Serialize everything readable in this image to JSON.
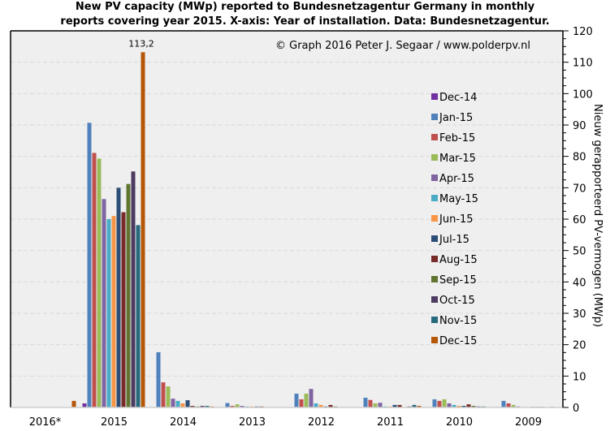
{
  "chart_data": {
    "type": "bar",
    "title_line1": "New PV capacity (MWp) reported to Bundesnetzagentur Germany in monthly",
    "title_line2": "reports covering year 2015. X-axis: Year of installation. Data: Bundesnetzagentur.",
    "credit": "© Graph 2016 Peter J. Segaar / www.polderpv.nl",
    "xlabel": "",
    "ylabel": "Nieuw gerapporteerd PV-vermogen (MWp)",
    "ylim": [
      0,
      120
    ],
    "yticks": [
      "0",
      "10",
      "20",
      "30",
      "40",
      "50",
      "60",
      "70",
      "80",
      "90",
      "100",
      "110",
      "120"
    ],
    "grid": true,
    "legend_position": "right",
    "categories": [
      "2016*",
      "2015",
      "2014",
      "2013",
      "2012",
      "2011",
      "2010",
      "2009"
    ],
    "series": [
      {
        "name": "Dec-14",
        "color": "#7030a0",
        "values": [
          0,
          1.3,
          0,
          0,
          0,
          0,
          0,
          0
        ]
      },
      {
        "name": "Jan-15",
        "color": "#4f81bd",
        "values": [
          0,
          90.7,
          17.6,
          1.4,
          4.4,
          3.1,
          2.6,
          2.1
        ]
      },
      {
        "name": "Feb-15",
        "color": "#c0504d",
        "values": [
          0,
          81.1,
          8.0,
          0.5,
          2.6,
          2.4,
          2.1,
          1.3
        ]
      },
      {
        "name": "Mar-15",
        "color": "#9bbb59",
        "values": [
          0,
          79.3,
          6.7,
          1.0,
          4.4,
          1.3,
          2.6,
          0.8
        ]
      },
      {
        "name": "Apr-15",
        "color": "#8064a2",
        "values": [
          0,
          66.4,
          2.8,
          0.5,
          5.9,
          1.5,
          1.3,
          0.3
        ]
      },
      {
        "name": "May-15",
        "color": "#4bacc6",
        "values": [
          0,
          60.0,
          2.1,
          0.3,
          1.3,
          0.3,
          0.8,
          0
        ]
      },
      {
        "name": "Jun-15",
        "color": "#f79646",
        "values": [
          0,
          61.0,
          1.3,
          0.3,
          0.8,
          0.3,
          0.5,
          0
        ]
      },
      {
        "name": "Jul-15",
        "color": "#2c4d75",
        "values": [
          0,
          70.0,
          2.3,
          0.3,
          0.3,
          0.8,
          0.5,
          0.2
        ]
      },
      {
        "name": "Aug-15",
        "color": "#772c2a",
        "values": [
          0,
          62.2,
          0.5,
          0.3,
          0.8,
          0.8,
          1.0,
          0.2
        ]
      },
      {
        "name": "Sep-15",
        "color": "#5f7530",
        "values": [
          0,
          71.2,
          0.3,
          0,
          0.3,
          0,
          0.5,
          0.2
        ]
      },
      {
        "name": "Oct-15",
        "color": "#4d3b62",
        "values": [
          0,
          75.2,
          0.5,
          0,
          0,
          0.3,
          0.3,
          0
        ]
      },
      {
        "name": "Nov-15",
        "color": "#276a7c",
        "values": [
          0,
          58.1,
          0.5,
          0,
          0,
          0.8,
          0.3,
          0.2
        ]
      },
      {
        "name": "Dec-15",
        "color": "#b65708",
        "values": [
          2.1,
          113.2,
          0.3,
          0,
          0,
          0.5,
          0,
          0
        ]
      }
    ],
    "annotations": [
      {
        "series": "Dec-15",
        "category": "2015",
        "text": "113,2"
      }
    ]
  },
  "colors": {
    "plot_background": "#efefef",
    "gridline": "#d9d9d9",
    "axis": "#000000"
  }
}
